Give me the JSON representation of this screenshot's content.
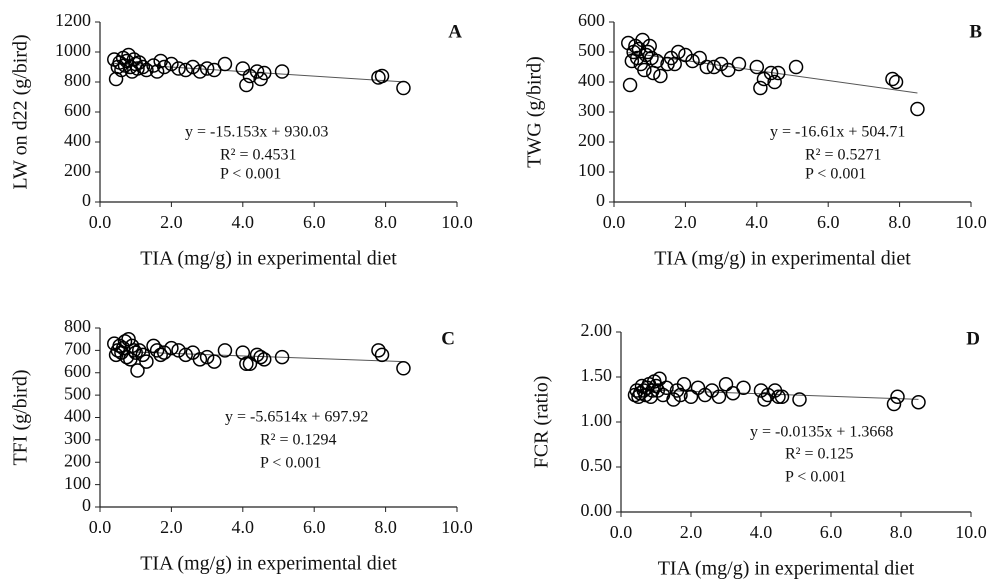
{
  "chart_data": [
    {
      "type": "scatter",
      "title": "A",
      "xlabel": "TIA (mg/g) in experimental diet",
      "ylabel": "LW on d22 (g/bird)",
      "annotations": [
        "y = -15.153x + 930.03",
        "R² = 0.4531",
        "P < 0.001"
      ],
      "trendline": {
        "slope": -15.153,
        "intercept": 930.03
      },
      "x": [
        0.4,
        0.45,
        0.5,
        0.55,
        0.6,
        0.65,
        0.7,
        0.75,
        0.8,
        0.85,
        0.9,
        0.95,
        1.0,
        1.05,
        1.1,
        1.2,
        1.3,
        1.5,
        1.6,
        1.7,
        1.8,
        2.0,
        2.2,
        2.4,
        2.6,
        2.8,
        3.0,
        3.2,
        3.5,
        4.0,
        4.1,
        4.2,
        4.4,
        4.5,
        4.6,
        5.1,
        7.8,
        7.9,
        8.5
      ],
      "y": [
        950,
        820,
        900,
        930,
        880,
        960,
        910,
        940,
        980,
        900,
        870,
        950,
        920,
        890,
        930,
        900,
        880,
        910,
        870,
        940,
        900,
        920,
        890,
        880,
        900,
        870,
        890,
        880,
        920,
        890,
        780,
        840,
        870,
        820,
        860,
        870,
        830,
        840,
        760
      ],
      "xlim": [
        0,
        10
      ],
      "xticks": [
        {
          "value": 0,
          "label": "0.0"
        },
        {
          "value": 2,
          "label": "2.0"
        },
        {
          "value": 4,
          "label": "4.0"
        },
        {
          "value": 6,
          "label": "6.0"
        },
        {
          "value": 8,
          "label": "8.0"
        },
        {
          "value": 10,
          "label": "10.0"
        }
      ],
      "ylim": [
        0,
        1200
      ],
      "yticks": [
        0,
        200,
        400,
        600,
        800,
        1000,
        1200
      ],
      "color": "#000000"
    },
    {
      "type": "scatter",
      "title": "B",
      "xlabel": "TIA (mg/g) in experimental diet",
      "ylabel": "TWG (g/bird)",
      "annotations": [
        "y = -16.61x + 504.71",
        "R² = 0.5271",
        "P < 0.001"
      ],
      "trendline": {
        "slope": -16.61,
        "intercept": 504.71
      },
      "x": [
        0.4,
        0.45,
        0.5,
        0.55,
        0.6,
        0.65,
        0.7,
        0.75,
        0.8,
        0.85,
        0.9,
        0.95,
        1.0,
        1.05,
        1.1,
        1.2,
        1.3,
        1.5,
        1.6,
        1.7,
        1.8,
        2.0,
        2.2,
        2.4,
        2.6,
        2.8,
        3.0,
        3.2,
        3.5,
        4.0,
        4.1,
        4.2,
        4.4,
        4.5,
        4.6,
        5.1,
        7.8,
        7.9,
        8.5
      ],
      "y": [
        530,
        390,
        470,
        500,
        520,
        480,
        510,
        460,
        540,
        440,
        490,
        500,
        520,
        480,
        430,
        470,
        420,
        460,
        480,
        460,
        500,
        490,
        470,
        480,
        450,
        450,
        460,
        440,
        460,
        450,
        380,
        410,
        430,
        400,
        430,
        450,
        410,
        400,
        310
      ],
      "xlim": [
        0,
        10
      ],
      "xticks": [
        {
          "value": 0,
          "label": "0.0"
        },
        {
          "value": 2,
          "label": "2.0"
        },
        {
          "value": 4,
          "label": "4.0"
        },
        {
          "value": 6,
          "label": "6.0"
        },
        {
          "value": 8,
          "label": "8.0"
        },
        {
          "value": 10,
          "label": "10.0"
        }
      ],
      "ylim": [
        0,
        600
      ],
      "yticks": [
        0,
        100,
        200,
        300,
        400,
        500,
        600
      ],
      "color": "#000000"
    },
    {
      "type": "scatter",
      "title": "C",
      "xlabel": "TIA (mg/g) in experimental diet",
      "ylabel": "TFI (g/bird)",
      "annotations": [
        "y = -5.6514x + 697.92",
        "R² = 0.1294",
        "P < 0.001"
      ],
      "trendline": {
        "slope": -5.6514,
        "intercept": 697.92
      },
      "x": [
        0.4,
        0.45,
        0.5,
        0.55,
        0.6,
        0.65,
        0.7,
        0.75,
        0.8,
        0.85,
        0.9,
        0.95,
        1.0,
        1.05,
        1.1,
        1.2,
        1.3,
        1.5,
        1.6,
        1.7,
        1.8,
        2.0,
        2.2,
        2.4,
        2.6,
        2.8,
        3.0,
        3.2,
        3.5,
        4.0,
        4.1,
        4.2,
        4.4,
        4.5,
        4.6,
        5.1,
        7.8,
        7.9,
        8.5
      ],
      "y": [
        730,
        680,
        700,
        720,
        690,
        710,
        740,
        670,
        750,
        660,
        720,
        700,
        690,
        610,
        700,
        680,
        650,
        720,
        700,
        680,
        690,
        710,
        700,
        680,
        690,
        660,
        670,
        650,
        700,
        690,
        640,
        640,
        680,
        670,
        660,
        670,
        700,
        680,
        620
      ],
      "xlim": [
        0,
        10
      ],
      "xticks": [
        {
          "value": 0,
          "label": "0.0"
        },
        {
          "value": 2,
          "label": "2.0"
        },
        {
          "value": 4,
          "label": "4.0"
        },
        {
          "value": 6,
          "label": "6.0"
        },
        {
          "value": 8,
          "label": "8.0"
        },
        {
          "value": 10,
          "label": "10.0"
        }
      ],
      "ylim": [
        0,
        800
      ],
      "yticks": [
        0,
        100,
        200,
        300,
        400,
        500,
        600,
        700,
        800
      ],
      "color": "#000000"
    },
    {
      "type": "scatter",
      "title": "D",
      "xlabel": "TIA (mg/g) in experimental diet",
      "ylabel": "FCR (ratio)",
      "annotations": [
        "y = -0.0135x + 1.3668",
        "R² = 0.125",
        "P < 0.001"
      ],
      "trendline": {
        "slope": -0.0135,
        "intercept": 1.3668
      },
      "x": [
        0.4,
        0.45,
        0.5,
        0.55,
        0.6,
        0.65,
        0.7,
        0.75,
        0.8,
        0.85,
        0.9,
        0.95,
        1.0,
        1.05,
        1.1,
        1.2,
        1.3,
        1.5,
        1.6,
        1.7,
        1.8,
        2.0,
        2.2,
        2.4,
        2.6,
        2.8,
        3.0,
        3.2,
        3.5,
        4.0,
        4.1,
        4.2,
        4.4,
        4.5,
        4.6,
        5.1,
        7.8,
        7.9,
        8.5
      ],
      "y": [
        1.3,
        1.35,
        1.28,
        1.32,
        1.4,
        1.35,
        1.3,
        1.38,
        1.42,
        1.28,
        1.35,
        1.45,
        1.4,
        1.35,
        1.48,
        1.3,
        1.38,
        1.25,
        1.35,
        1.3,
        1.42,
        1.28,
        1.38,
        1.3,
        1.35,
        1.28,
        1.42,
        1.32,
        1.38,
        1.35,
        1.25,
        1.3,
        1.35,
        1.28,
        1.28,
        1.25,
        1.2,
        1.28,
        1.22
      ],
      "xlim": [
        0,
        10
      ],
      "xticks": [
        {
          "value": 0,
          "label": "0.0"
        },
        {
          "value": 2,
          "label": "2.0"
        },
        {
          "value": 4,
          "label": "4.0"
        },
        {
          "value": 6,
          "label": "6.0"
        },
        {
          "value": 8,
          "label": "8.0"
        },
        {
          "value": 10,
          "label": "10.0"
        }
      ],
      "ylim": [
        0,
        2
      ],
      "yticks": [
        {
          "value": 0,
          "label": "0.00"
        },
        {
          "value": 0.5,
          "label": "0.50"
        },
        {
          "value": 1,
          "label": "1.00"
        },
        {
          "value": 1.5,
          "label": "1.50"
        },
        {
          "value": 2,
          "label": "2.00"
        }
      ],
      "color": "#000000"
    }
  ]
}
